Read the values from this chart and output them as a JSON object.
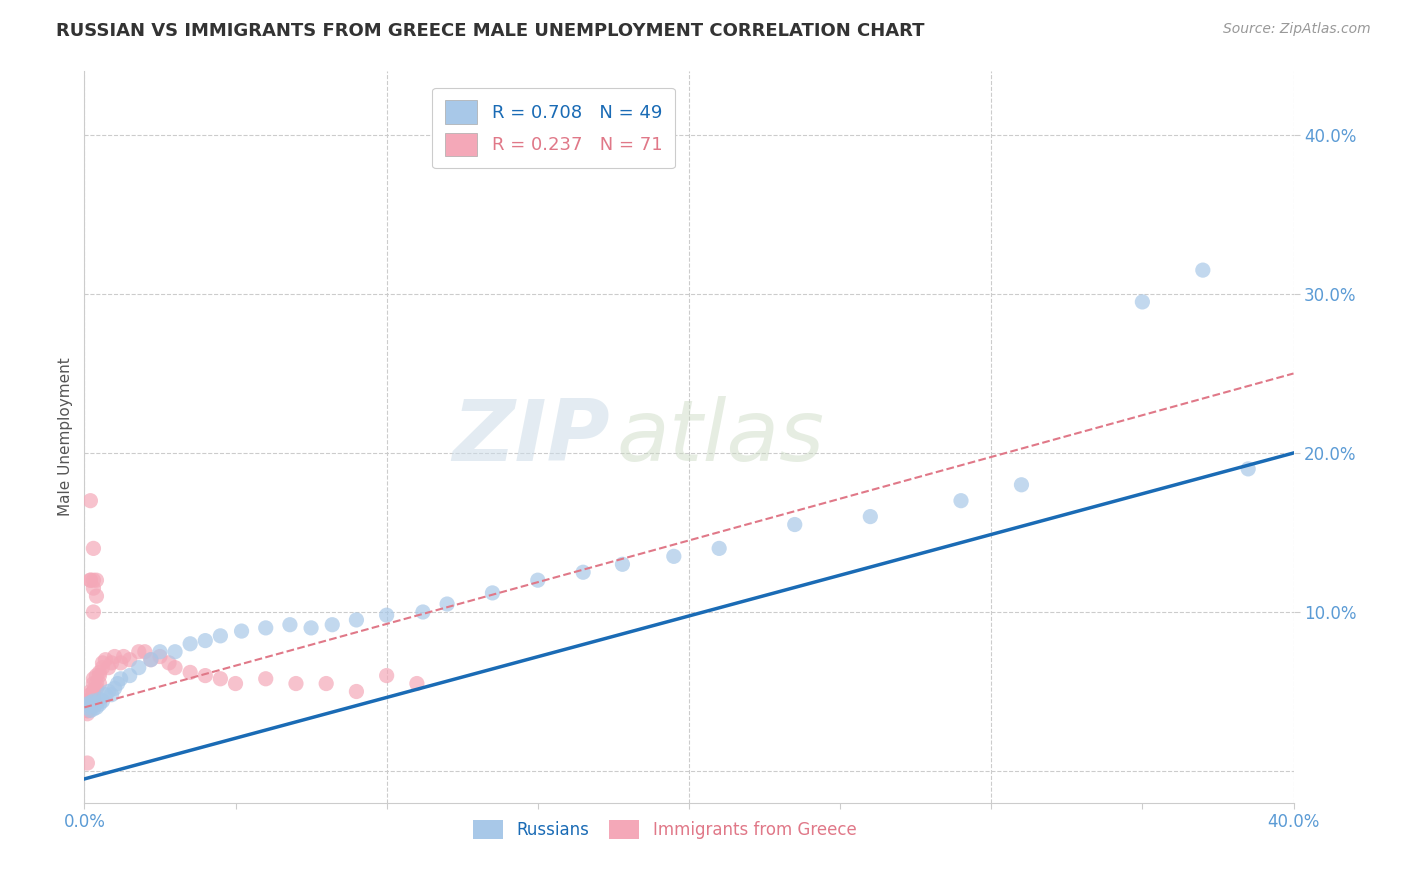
{
  "title": "RUSSIAN VS IMMIGRANTS FROM GREECE MALE UNEMPLOYMENT CORRELATION CHART",
  "source": "Source: ZipAtlas.com",
  "ylabel": "Male Unemployment",
  "watermark_zip": "ZIP",
  "watermark_atlas": "atlas",
  "xlim": [
    0.0,
    0.4
  ],
  "ylim": [
    -0.02,
    0.44
  ],
  "russians_color": "#a8c8e8",
  "greece_color": "#f4a8b8",
  "russians_line_color": "#1a6bb5",
  "greece_line_color": "#e07888",
  "grid_color": "#cccccc",
  "background_color": "#ffffff",
  "tick_color": "#5b9bd5",
  "title_color": "#333333",
  "source_color": "#999999",
  "ylabel_color": "#555555",
  "russians_x": [
    0.001,
    0.001,
    0.002,
    0.002,
    0.002,
    0.003,
    0.003,
    0.003,
    0.004,
    0.004,
    0.005,
    0.005,
    0.006,
    0.007,
    0.008,
    0.009,
    0.01,
    0.011,
    0.012,
    0.015,
    0.018,
    0.022,
    0.025,
    0.03,
    0.035,
    0.04,
    0.045,
    0.052,
    0.06,
    0.068,
    0.075,
    0.082,
    0.09,
    0.1,
    0.112,
    0.12,
    0.135,
    0.15,
    0.165,
    0.178,
    0.195,
    0.21,
    0.235,
    0.26,
    0.29,
    0.31,
    0.35,
    0.37,
    0.385
  ],
  "russians_y": [
    0.04,
    0.042,
    0.038,
    0.041,
    0.043,
    0.039,
    0.041,
    0.044,
    0.04,
    0.043,
    0.042,
    0.045,
    0.044,
    0.048,
    0.05,
    0.048,
    0.052,
    0.055,
    0.058,
    0.06,
    0.065,
    0.07,
    0.075,
    0.075,
    0.08,
    0.082,
    0.085,
    0.088,
    0.09,
    0.092,
    0.09,
    0.092,
    0.095,
    0.098,
    0.1,
    0.105,
    0.112,
    0.12,
    0.125,
    0.13,
    0.135,
    0.14,
    0.155,
    0.16,
    0.17,
    0.18,
    0.295,
    0.315,
    0.19
  ],
  "greece_x": [
    0.001,
    0.001,
    0.001,
    0.001,
    0.001,
    0.001,
    0.001,
    0.001,
    0.001,
    0.001,
    0.001,
    0.001,
    0.001,
    0.001,
    0.001,
    0.002,
    0.002,
    0.002,
    0.002,
    0.002,
    0.002,
    0.002,
    0.002,
    0.003,
    0.003,
    0.003,
    0.003,
    0.003,
    0.003,
    0.004,
    0.004,
    0.004,
    0.005,
    0.005,
    0.005,
    0.006,
    0.006,
    0.007,
    0.008,
    0.009,
    0.01,
    0.012,
    0.013,
    0.015,
    0.018,
    0.02,
    0.022,
    0.025,
    0.028,
    0.03,
    0.035,
    0.04,
    0.045,
    0.05,
    0.06,
    0.07,
    0.08,
    0.09,
    0.1,
    0.11,
    0.002,
    0.003,
    0.003,
    0.002,
    0.002,
    0.003,
    0.004,
    0.004,
    0.003,
    0.002,
    0.001
  ],
  "greece_y": [
    0.04,
    0.04,
    0.038,
    0.04,
    0.038,
    0.042,
    0.04,
    0.038,
    0.04,
    0.036,
    0.042,
    0.038,
    0.04,
    0.042,
    0.04,
    0.042,
    0.04,
    0.045,
    0.042,
    0.04,
    0.045,
    0.042,
    0.048,
    0.05,
    0.048,
    0.045,
    0.05,
    0.055,
    0.058,
    0.052,
    0.055,
    0.06,
    0.055,
    0.06,
    0.062,
    0.065,
    0.068,
    0.07,
    0.065,
    0.068,
    0.072,
    0.068,
    0.072,
    0.07,
    0.075,
    0.075,
    0.07,
    0.072,
    0.068,
    0.065,
    0.062,
    0.06,
    0.058,
    0.055,
    0.058,
    0.055,
    0.055,
    0.05,
    0.06,
    0.055,
    0.17,
    0.14,
    0.12,
    0.12,
    0.12,
    0.115,
    0.12,
    0.11,
    0.1,
    0.05,
    0.005
  ],
  "rus_line_x0": 0.0,
  "rus_line_y0": -0.005,
  "rus_line_x1": 0.4,
  "rus_line_y1": 0.2,
  "gre_line_x0": 0.0,
  "gre_line_y0": 0.04,
  "gre_line_x1": 0.4,
  "gre_line_y1": 0.25
}
